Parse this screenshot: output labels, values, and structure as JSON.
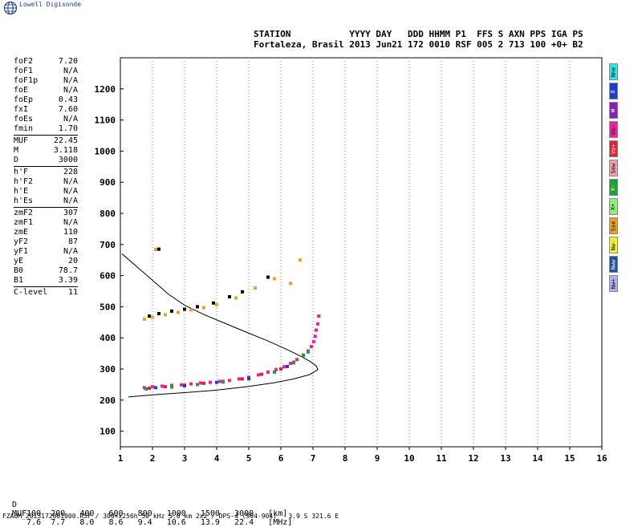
{
  "app": {
    "logo_text": "Lowell Digisonde"
  },
  "header": {
    "line1": "STATION           YYYY DAY   DDD HHMM P1  FFS S AXN PPS IGA PS",
    "line2": "Fortaleza, Brasil 2013 Jun21 172 0010 RSF 005 2 713 100 +0+ B2"
  },
  "params": [
    [
      {
        "label": "foF2",
        "value": "7.20"
      },
      {
        "label": "foF1",
        "value": "N/A"
      },
      {
        "label": "foF1p",
        "value": "N/A"
      },
      {
        "label": "foE",
        "value": "N/A"
      },
      {
        "label": "foEp",
        "value": "0.43"
      },
      {
        "label": "fxI",
        "value": "7.60"
      },
      {
        "label": "foEs",
        "value": "N/A"
      },
      {
        "label": "fmin",
        "value": "1.70"
      }
    ],
    [
      {
        "label": "MUF",
        "value": "22.45"
      },
      {
        "label": "M",
        "value": "3.118"
      },
      {
        "label": "D",
        "value": "3000"
      }
    ],
    [
      {
        "label": "h'F",
        "value": "228"
      },
      {
        "label": "h'F2",
        "value": "N/A"
      },
      {
        "label": "h'E",
        "value": "N/A"
      },
      {
        "label": "h'Es",
        "value": "N/A"
      }
    ],
    [
      {
        "label": "zmF2",
        "value": "307"
      },
      {
        "label": "zmF1",
        "value": "N/A"
      },
      {
        "label": "zmE",
        "value": "110"
      },
      {
        "label": "yF2",
        "value": "87"
      },
      {
        "label": "yF1",
        "value": "N/A"
      },
      {
        "label": "yE",
        "value": "20"
      },
      {
        "label": "B0",
        "value": "78.7"
      },
      {
        "label": "B1",
        "value": "3.39"
      }
    ],
    [
      {
        "label": "C-level",
        "value": "11"
      }
    ]
  ],
  "tabs": [
    {
      "label": "Nne",
      "color": "#2ee8e8"
    },
    {
      "label": "E",
      "color": "#1c3fcf"
    },
    {
      "label": "W",
      "color": "#8a1fb8"
    },
    {
      "label": "Vo-",
      "color": "#f01fa0"
    },
    {
      "label": "Vo+",
      "color": "#e8202a"
    },
    {
      "label": "Sew",
      "color": "#f0a0a8"
    },
    {
      "label": "X-",
      "color": "#1f9f2f"
    },
    {
      "label": "X+",
      "color": "#8ef07a"
    },
    {
      "label": "Sse",
      "color": "#f0a020"
    },
    {
      "label": "Nw-",
      "color": "#f0f030"
    },
    {
      "label": "Nww",
      "color": "#1f4fa0"
    },
    {
      "label": "Nw+",
      "color": "#b0b0f0"
    }
  ],
  "muf_table": {
    "d_label": "D",
    "d_values": [
      "100",
      "200",
      "400",
      "600",
      "800",
      "1000",
      "1500",
      "3000"
    ],
    "d_unit": "[km]",
    "muf_label": "MUF",
    "muf_values": [
      "7.6",
      "7.7",
      "8.0",
      "8.6",
      "9.4",
      "10.6",
      "13.9",
      "22.4"
    ],
    "muf_unit": "[MHz]"
  },
  "footer": "FZA0M_2013172001000.RSF / 300+x256h 50 kHz 5.0 km 2x2 / DPS-4 (904-904)   3.9 S 321.6 E",
  "chart_data": {
    "type": "scatter",
    "xlim": [
      1,
      16
    ],
    "ylim": [
      50,
      1300
    ],
    "x_ticks": [
      1,
      2,
      3,
      4,
      5,
      6,
      7,
      8,
      9,
      10,
      11,
      12,
      13,
      14,
      15,
      16
    ],
    "y_ticks": [
      100,
      200,
      300,
      400,
      500,
      600,
      700,
      800,
      900,
      1000,
      1100,
      1200
    ],
    "grid": "dotted vertical at each MHz",
    "profile_curve": {
      "color": "#000000",
      "lower_trace": [
        [
          1.25,
          210
        ],
        [
          2,
          217
        ],
        [
          3,
          224
        ],
        [
          4,
          232
        ],
        [
          5,
          244
        ],
        [
          5.8,
          256
        ],
        [
          6.4,
          268
        ],
        [
          6.9,
          282
        ],
        [
          7.15,
          298
        ]
      ],
      "upper_trace": [
        [
          7.15,
          298
        ],
        [
          7.1,
          310
        ],
        [
          6.9,
          325
        ],
        [
          6.6,
          342
        ],
        [
          6.2,
          362
        ],
        [
          5.6,
          390
        ],
        [
          5,
          415
        ],
        [
          4.3,
          445
        ],
        [
          3.6,
          475
        ],
        [
          3,
          505
        ],
        [
          2.5,
          540
        ],
        [
          2,
          585
        ],
        [
          1.5,
          630
        ],
        [
          1.05,
          670
        ]
      ]
    },
    "series": [
      {
        "color": "#f01fa0",
        "points": [
          [
            1.75,
            240
          ],
          [
            2.0,
            243
          ],
          [
            2.3,
            245
          ],
          [
            2.6,
            247
          ],
          [
            2.9,
            249
          ],
          [
            3.2,
            252
          ],
          [
            3.5,
            255
          ],
          [
            3.8,
            257
          ],
          [
            4.1,
            260
          ],
          [
            4.4,
            263
          ],
          [
            4.7,
            268
          ],
          [
            5.0,
            273
          ],
          [
            5.3,
            281
          ],
          [
            5.6,
            290
          ],
          [
            5.85,
            298
          ],
          [
            6.1,
            307
          ],
          [
            6.3,
            318
          ],
          [
            6.5,
            330
          ],
          [
            6.7,
            345
          ],
          [
            6.85,
            358
          ],
          [
            6.95,
            372
          ],
          [
            7.02,
            388
          ],
          [
            7.07,
            405
          ],
          [
            7.1,
            425
          ],
          [
            7.15,
            445
          ],
          [
            7.18,
            470
          ]
        ]
      },
      {
        "color": "#e8202a",
        "points": [
          [
            1.9,
            238
          ],
          [
            2.4,
            243
          ],
          [
            3.0,
            248
          ],
          [
            3.6,
            254
          ],
          [
            4.2,
            260
          ],
          [
            4.8,
            268
          ],
          [
            5.4,
            283
          ],
          [
            6.0,
            300
          ],
          [
            6.4,
            320
          ]
        ]
      },
      {
        "color": "#1f9f2f",
        "points": [
          [
            1.8,
            236
          ],
          [
            2.6,
            242
          ],
          [
            3.4,
            250
          ],
          [
            4.2,
            258
          ],
          [
            5.0,
            268
          ],
          [
            5.8,
            290
          ],
          [
            6.4,
            322
          ],
          [
            6.7,
            343
          ],
          [
            6.85,
            355
          ]
        ]
      },
      {
        "color": "#1c3fcf",
        "points": [
          [
            2.1,
            240
          ],
          [
            3.0,
            246
          ],
          [
            4.0,
            257
          ],
          [
            5.0,
            270
          ],
          [
            6.2,
            308
          ]
        ]
      },
      {
        "color": "#000000",
        "points": [
          [
            1.9,
            470
          ],
          [
            2.2,
            478
          ],
          [
            2.6,
            486
          ],
          [
            3.0,
            492
          ],
          [
            3.4,
            500
          ],
          [
            3.9,
            512
          ],
          [
            4.4,
            532
          ],
          [
            4.8,
            548
          ],
          [
            5.6,
            595
          ],
          [
            2.2,
            685
          ]
        ]
      },
      {
        "color": "#f0a020",
        "points": [
          [
            1.75,
            460
          ],
          [
            2.0,
            466
          ],
          [
            2.4,
            474
          ],
          [
            2.8,
            482
          ],
          [
            3.2,
            490
          ],
          [
            3.6,
            497
          ],
          [
            4.0,
            507
          ],
          [
            4.6,
            528
          ],
          [
            5.2,
            560
          ],
          [
            5.8,
            590
          ],
          [
            6.6,
            650
          ],
          [
            2.1,
            684
          ],
          [
            6.3,
            575
          ]
        ]
      }
    ]
  }
}
